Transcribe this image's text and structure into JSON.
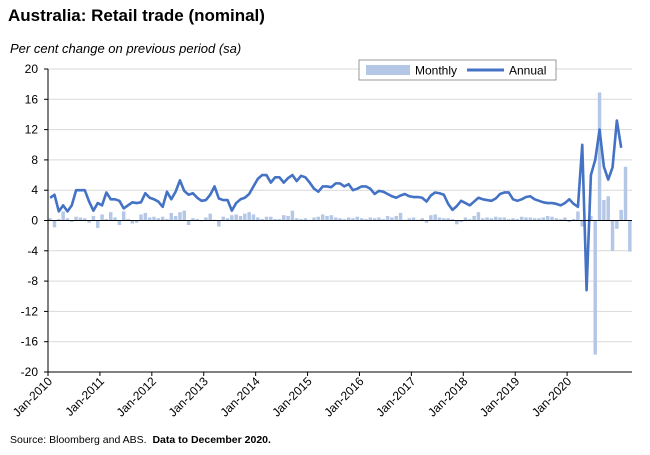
{
  "chart_data": {
    "type": "bar+line",
    "title": "Australia: Retail trade (nominal)",
    "subtitle": "Per cent change on previous period (sa)",
    "source": "Source: Bloomberg and ABS.",
    "source_bold": "Data to December 2020.",
    "ylim": [
      -20,
      20
    ],
    "yticks": [
      20,
      16,
      12,
      8,
      4,
      0,
      -4,
      -8,
      -12,
      -16,
      -20
    ],
    "xlim": [
      "Jan-2010",
      "Dec-2020"
    ],
    "xticks": [
      "Jan-2010",
      "Jan-2011",
      "Jan-2012",
      "Jan-2013",
      "Jan-2014",
      "Jan-2015",
      "Jan-2016",
      "Jan-2017",
      "Jan-2018",
      "Jan-2019",
      "Jan-2020"
    ],
    "grid": "horizontal",
    "legend_position": "top-right",
    "colors": {
      "monthly": "#b4c7e7",
      "annual": "#4472c4",
      "grid": "#d9d9d9"
    },
    "series": [
      {
        "name": "Monthly",
        "type": "bar",
        "start": "Jan-2010",
        "frequency": "monthly",
        "values": [
          0.3,
          -0.9,
          0.2,
          1.2,
          0.3,
          -0.2,
          0.5,
          0.4,
          0.3,
          -0.3,
          0.6,
          -1.0,
          0.8,
          0.2,
          1.1,
          0.4,
          -0.6,
          1.2,
          0.2,
          -0.4,
          -0.3,
          0.8,
          1.0,
          0.4,
          0.5,
          0.3,
          0.5,
          0.2,
          1.0,
          0.6,
          1.1,
          1.3,
          -0.6,
          0.3,
          0.2,
          -0.1,
          0.4,
          0.9,
          0.1,
          -0.8,
          0.5,
          0.3,
          0.7,
          0.8,
          0.6,
          0.9,
          1.1,
          0.8,
          0.4,
          0.2,
          0.5,
          0.5,
          0.2,
          0.2,
          0.7,
          0.6,
          1.3,
          0.3,
          0.2,
          0.3,
          0.1,
          0.4,
          0.5,
          0.8,
          0.6,
          0.7,
          0.4,
          0.3,
          0.2,
          0.4,
          0.3,
          0.5,
          0.3,
          0.2,
          0.4,
          0.3,
          0.4,
          0.2,
          0.6,
          0.4,
          0.6,
          1.0,
          0.1,
          0.3,
          0.4,
          0.1,
          0.3,
          -0.3,
          0.7,
          0.8,
          0.4,
          0.3,
          0.3,
          0.2,
          -0.5,
          -0.2,
          0.4,
          0.2,
          0.6,
          1.1,
          0.3,
          0.4,
          0.3,
          0.5,
          0.4,
          0.4,
          0.2,
          0.3,
          0.2,
          0.5,
          0.4,
          0.4,
          0.3,
          0.3,
          0.4,
          0.6,
          0.5,
          0.3,
          0.2,
          0.4,
          -0.2,
          0.2,
          1.2,
          -0.8,
          0.1,
          0.6,
          -17.7,
          16.9,
          2.7,
          3.2,
          -4.0,
          -1.1,
          1.4,
          7.1,
          -4.1
        ]
      },
      {
        "name": "Annual",
        "type": "line",
        "start": "Jan-2010",
        "frequency": "monthly",
        "values": [
          3.0,
          3.4,
          1.2,
          2.0,
          1.2,
          2.0,
          4.0,
          4.0,
          4.0,
          2.5,
          1.3,
          2.3,
          2.0,
          3.7,
          2.8,
          2.8,
          2.6,
          1.6,
          2.0,
          2.4,
          2.3,
          2.4,
          3.6,
          3.0,
          2.8,
          2.5,
          1.8,
          3.8,
          2.8,
          3.8,
          5.3,
          3.9,
          3.4,
          3.6,
          3.0,
          2.6,
          2.7,
          3.4,
          4.5,
          2.9,
          2.7,
          2.7,
          1.3,
          2.3,
          2.8,
          3.0,
          3.5,
          4.5,
          5.5,
          6.0,
          6.0,
          5.0,
          5.7,
          5.7,
          5.0,
          5.6,
          6.0,
          5.2,
          5.9,
          5.7,
          5.0,
          4.2,
          3.8,
          4.5,
          4.5,
          4.4,
          4.9,
          4.9,
          4.5,
          4.8,
          4.0,
          4.2,
          4.5,
          4.5,
          4.2,
          3.5,
          3.9,
          3.8,
          3.5,
          3.2,
          3.0,
          3.3,
          3.5,
          3.2,
          3.1,
          3.1,
          3.0,
          2.5,
          3.3,
          3.7,
          3.6,
          3.4,
          2.2,
          1.4,
          1.9,
          2.6,
          2.3,
          2.0,
          2.5,
          3.0,
          2.8,
          2.7,
          2.6,
          2.9,
          3.5,
          3.7,
          3.7,
          2.8,
          2.6,
          2.8,
          3.1,
          3.2,
          2.8,
          2.6,
          2.4,
          2.3,
          2.3,
          2.2,
          2.0,
          2.3,
          2.8,
          2.2,
          1.8,
          10.0,
          -9.2,
          6.0,
          8.0,
          12.0,
          7.1,
          5.4,
          7.0,
          13.2,
          9.6
        ]
      }
    ]
  }
}
